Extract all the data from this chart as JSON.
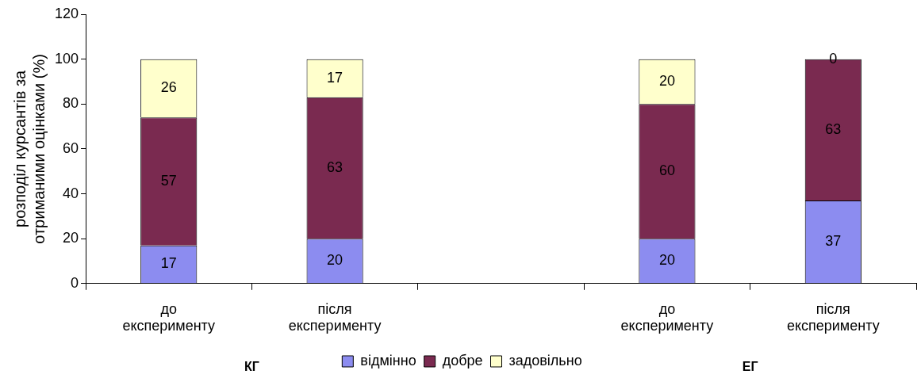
{
  "chart_data": {
    "type": "bar",
    "stacked": true,
    "ylabel": "розподіл курсантів за\nотриманими оцінками (%)",
    "categories": [
      "до експерименту",
      "після експерименту",
      null,
      "до експерименту",
      "після експерименту"
    ],
    "series": [
      {
        "name": "відмінно",
        "color": "#8c8cf0",
        "values": [
          17,
          20,
          null,
          20,
          37
        ]
      },
      {
        "name": "добре",
        "color": "#7a2a50",
        "values": [
          57,
          63,
          null,
          60,
          63
        ]
      },
      {
        "name": "задовільно",
        "color": "#ffffcc",
        "values": [
          26,
          17,
          null,
          20,
          0
        ]
      }
    ],
    "ylim": [
      0,
      120
    ],
    "yticks": [
      0,
      20,
      40,
      60,
      80,
      100,
      120
    ],
    "grid": false,
    "legend": "bottom",
    "data_labels": true,
    "annotations": [
      "КГ",
      "ЕГ"
    ]
  }
}
